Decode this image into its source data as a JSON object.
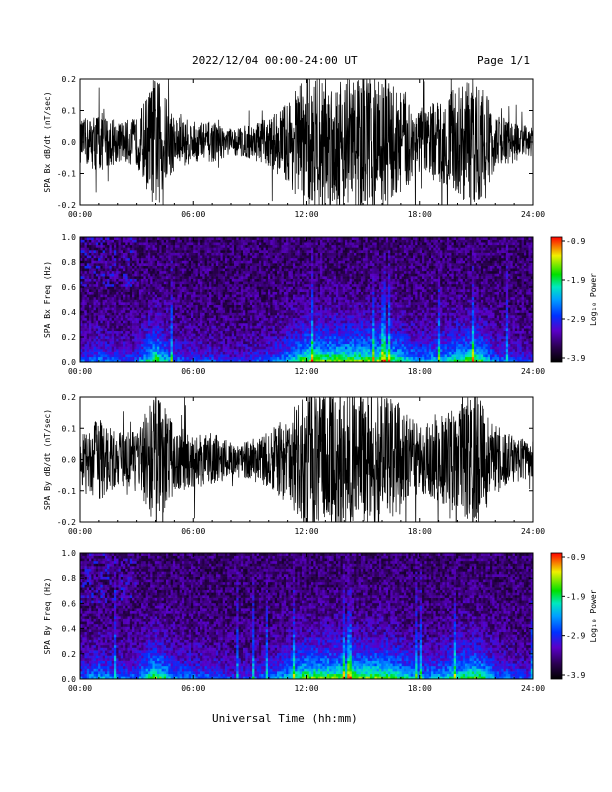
{
  "header": {
    "title": "2022/12/04  00:00-24:00 UT",
    "page": "Page 1/1"
  },
  "xaxis_caption": "Universal Time (hh:mm)",
  "colorbar": {
    "label": "Log₁₀ Power",
    "ticks": [
      "-0.9",
      "-1.9",
      "-2.9",
      "-3.9"
    ],
    "range": [
      -3.9,
      -0.9
    ],
    "colormap": "rainbow (black-purple-blue-cyan-green-yellow-red)"
  },
  "chart_data": [
    {
      "type": "line",
      "title": "",
      "ylabel": "SPA Bx dB/dt (nT/sec)",
      "xlabel": "",
      "x_ticks": [
        "00:00",
        "06:00",
        "12:00",
        "18:00",
        "24:00"
      ],
      "y_ticks": [
        "0.2",
        "0.1",
        "0.0",
        "-0.1",
        "-0.2"
      ],
      "xlim": [
        0,
        24
      ],
      "ylim": [
        -0.2,
        0.2
      ],
      "series": [
        {
          "x_hours": [
            0,
            1,
            2,
            3,
            4,
            5,
            6,
            7,
            8,
            9,
            10,
            11,
            12,
            13,
            14,
            15,
            16,
            17,
            18,
            19,
            20,
            21,
            22,
            23,
            24
          ],
          "envelope_amplitude": [
            0.06,
            0.09,
            0.06,
            0.07,
            0.2,
            0.08,
            0.06,
            0.06,
            0.04,
            0.05,
            0.07,
            0.12,
            0.2,
            0.2,
            0.2,
            0.2,
            0.2,
            0.16,
            0.1,
            0.12,
            0.16,
            0.2,
            0.08,
            0.06,
            0.04
          ]
        }
      ]
    },
    {
      "type": "heatmap",
      "title": "",
      "ylabel": "SPA Bx Freq (Hz)",
      "x_ticks": [
        "00:00",
        "06:00",
        "12:00",
        "18:00",
        "24:00"
      ],
      "y_ticks": [
        "1.0",
        "0.8",
        "0.6",
        "0.4",
        "0.2",
        "0.0"
      ],
      "xlim": [
        0,
        24
      ],
      "ylim": [
        0,
        1.0
      ],
      "value_label": "Log₁₀ Power",
      "value_range": [
        -3.9,
        -0.9
      ]
    },
    {
      "type": "line",
      "title": "",
      "ylabel": "SPA By dB/dt (nT/sec)",
      "xlabel": "",
      "x_ticks": [
        "00:00",
        "06:00",
        "12:00",
        "18:00",
        "24:00"
      ],
      "y_ticks": [
        "0.2",
        "0.1",
        "0.0",
        "-0.1",
        "-0.2"
      ],
      "xlim": [
        0,
        24
      ],
      "ylim": [
        -0.2,
        0.2
      ],
      "series": [
        {
          "x_hours": [
            0,
            1,
            2,
            3,
            4,
            5,
            6,
            7,
            8,
            9,
            10,
            11,
            12,
            13,
            14,
            15,
            16,
            17,
            18,
            19,
            20,
            21,
            22,
            23,
            24
          ],
          "envelope_amplitude": [
            0.07,
            0.12,
            0.08,
            0.08,
            0.2,
            0.1,
            0.08,
            0.08,
            0.05,
            0.06,
            0.08,
            0.13,
            0.2,
            0.2,
            0.2,
            0.2,
            0.2,
            0.16,
            0.1,
            0.12,
            0.16,
            0.2,
            0.1,
            0.07,
            0.05
          ]
        }
      ]
    },
    {
      "type": "heatmap",
      "title": "",
      "ylabel": "SPA By Freq (Hz)",
      "x_ticks": [
        "00:00",
        "06:00",
        "12:00",
        "18:00",
        "24:00"
      ],
      "y_ticks": [
        "1.0",
        "0.8",
        "0.6",
        "0.4",
        "0.2",
        "0.0"
      ],
      "xlim": [
        0,
        24
      ],
      "ylim": [
        0,
        1.0
      ],
      "value_label": "Log₁₀ Power",
      "value_range": [
        -3.9,
        -0.9
      ]
    }
  ]
}
